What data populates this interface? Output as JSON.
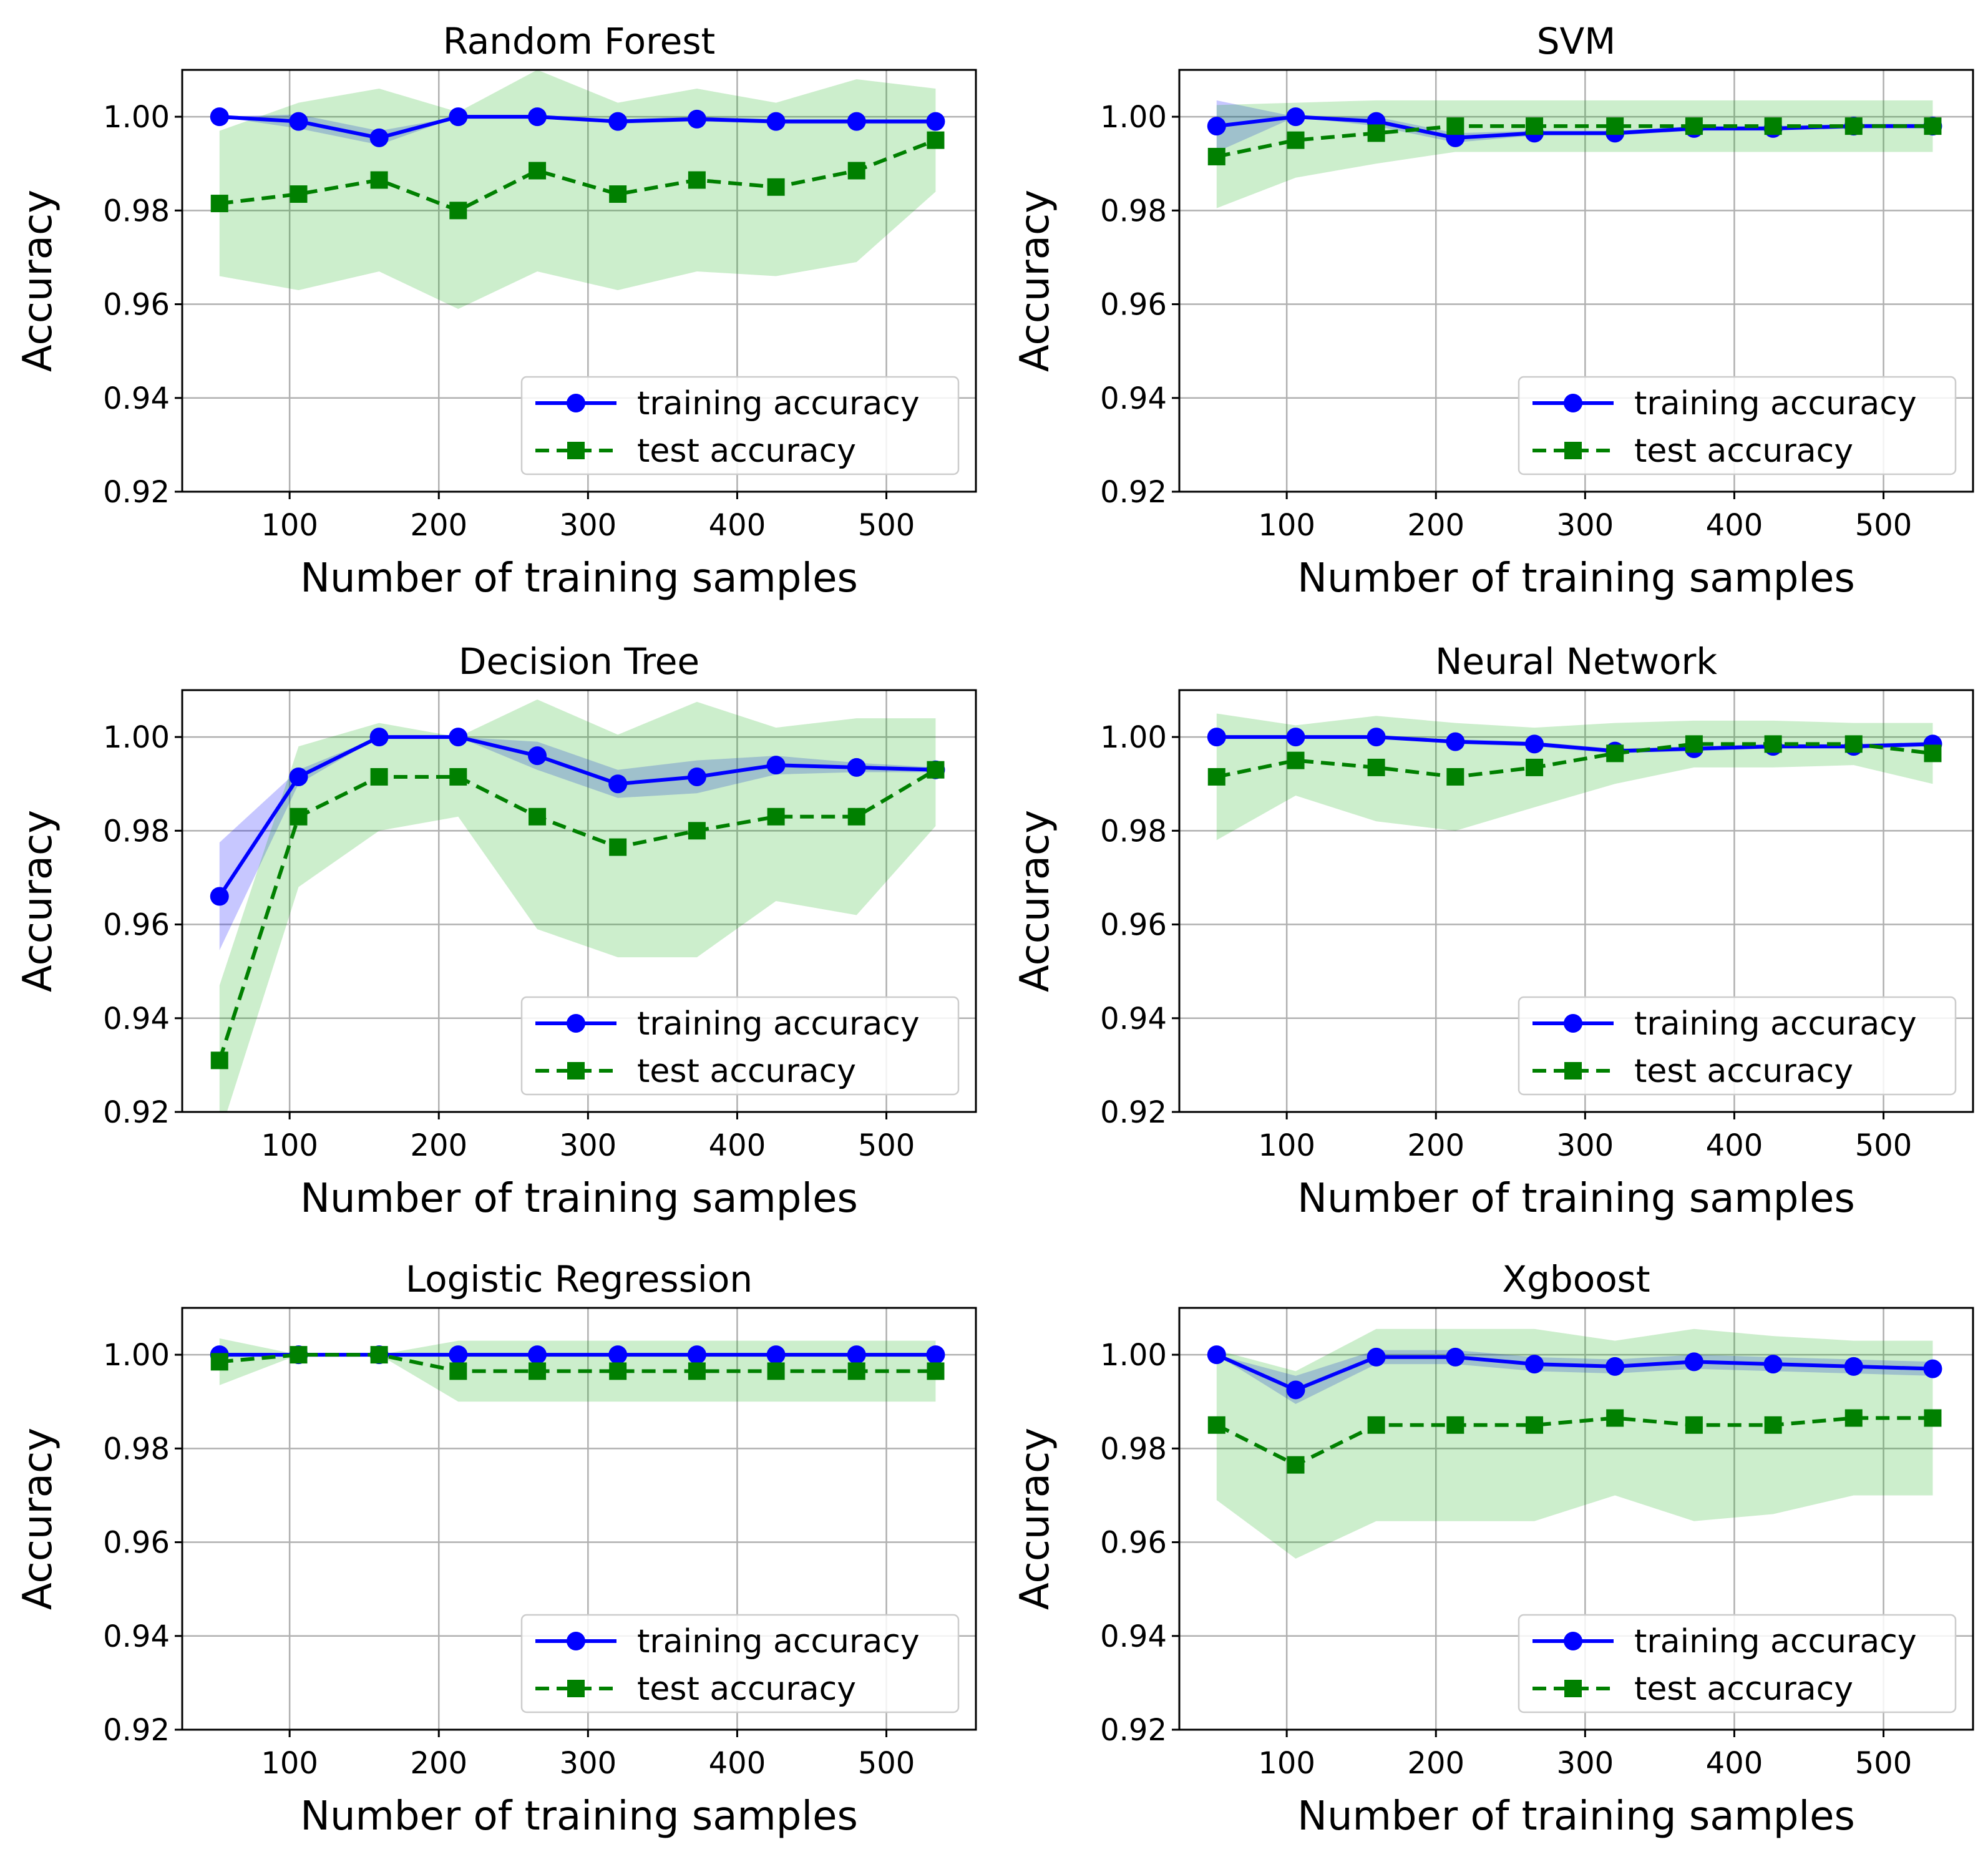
{
  "chart_data": [
    {
      "type": "line",
      "title": "Random Forest",
      "xlabel": "Number of training samples",
      "ylabel": "Accuracy",
      "xlim": [
        28,
        560
      ],
      "ylim": [
        0.92,
        1.01
      ],
      "xticks": [
        "100",
        "200",
        "300",
        "400",
        "500"
      ],
      "yticks": [
        "0.92",
        "0.94",
        "0.96",
        "0.98",
        "1.00"
      ],
      "grid": true,
      "legend_position": "lower-right",
      "x": [
        53,
        106,
        160,
        213,
        266,
        320,
        373,
        426,
        480,
        533
      ],
      "series": [
        {
          "name": "training accuracy",
          "color": "#0000ff",
          "style": "solid",
          "marker": "circle",
          "values": [
            1.0,
            0.999,
            0.9955,
            1.0,
            1.0,
            0.999,
            0.9995,
            0.999,
            0.999,
            0.999
          ],
          "band_low": [
            1.0,
            0.9975,
            0.994,
            1.0,
            1.0,
            0.9985,
            0.999,
            0.9985,
            0.9985,
            0.9985
          ],
          "band_high": [
            1.0,
            1.0005,
            0.997,
            1.0,
            1.0,
            0.9995,
            1.0,
            0.9995,
            0.9995,
            0.9995
          ]
        },
        {
          "name": "test accuracy",
          "color": "#008000",
          "style": "dashed",
          "marker": "square",
          "values": [
            0.9815,
            0.9835,
            0.9865,
            0.98,
            0.9885,
            0.9835,
            0.9865,
            0.985,
            0.9885,
            0.995
          ],
          "band_low": [
            0.966,
            0.963,
            0.967,
            0.959,
            0.967,
            0.963,
            0.967,
            0.966,
            0.969,
            0.984
          ],
          "band_high": [
            0.997,
            1.003,
            1.006,
            1.001,
            1.01,
            1.003,
            1.006,
            1.003,
            1.008,
            1.006
          ]
        }
      ]
    },
    {
      "type": "line",
      "title": "SVM",
      "xlabel": "Number of training samples",
      "ylabel": "Accuracy",
      "xlim": [
        28,
        560
      ],
      "ylim": [
        0.92,
        1.01
      ],
      "xticks": [
        "100",
        "200",
        "300",
        "400",
        "500"
      ],
      "yticks": [
        "0.92",
        "0.94",
        "0.96",
        "0.98",
        "1.00"
      ],
      "grid": true,
      "legend_position": "lower-right",
      "x": [
        53,
        106,
        160,
        213,
        266,
        320,
        373,
        426,
        480,
        533
      ],
      "series": [
        {
          "name": "training accuracy",
          "color": "#0000ff",
          "style": "solid",
          "marker": "circle",
          "values": [
            0.998,
            1.0,
            0.999,
            0.9955,
            0.9965,
            0.9965,
            0.9975,
            0.9975,
            0.998,
            0.998
          ],
          "band_low": [
            0.9925,
            1.0,
            0.998,
            0.9945,
            0.996,
            0.996,
            0.997,
            0.997,
            0.9975,
            0.9975
          ],
          "band_high": [
            1.0035,
            1.0,
            1.0,
            0.9965,
            0.997,
            0.997,
            0.998,
            0.998,
            0.9985,
            0.9985
          ]
        },
        {
          "name": "test accuracy",
          "color": "#008000",
          "style": "dashed",
          "marker": "square",
          "values": [
            0.9915,
            0.995,
            0.9965,
            0.998,
            0.998,
            0.998,
            0.998,
            0.998,
            0.998,
            0.998
          ],
          "band_low": [
            0.9805,
            0.987,
            0.99,
            0.9925,
            0.9925,
            0.9925,
            0.9925,
            0.9925,
            0.9925,
            0.9925
          ],
          "band_high": [
            1.0025,
            1.003,
            1.0035,
            1.0035,
            1.0035,
            1.0035,
            1.0035,
            1.0035,
            1.0035,
            1.0035
          ]
        }
      ]
    },
    {
      "type": "line",
      "title": "Decision Tree",
      "xlabel": "Number of training samples",
      "ylabel": "Accuracy",
      "xlim": [
        28,
        560
      ],
      "ylim": [
        0.92,
        1.01
      ],
      "xticks": [
        "100",
        "200",
        "300",
        "400",
        "500"
      ],
      "yticks": [
        "0.92",
        "0.94",
        "0.96",
        "0.98",
        "1.00"
      ],
      "grid": true,
      "legend_position": "lower-right",
      "x": [
        53,
        106,
        160,
        213,
        266,
        320,
        373,
        426,
        480,
        533
      ],
      "series": [
        {
          "name": "training accuracy",
          "color": "#0000ff",
          "style": "solid",
          "marker": "circle",
          "values": [
            0.966,
            0.9915,
            1.0,
            1.0,
            0.996,
            0.99,
            0.9915,
            0.994,
            0.9935,
            0.993
          ],
          "band_low": [
            0.9545,
            0.99,
            1.0,
            1.0,
            0.993,
            0.987,
            0.988,
            0.992,
            0.9925,
            0.9925
          ],
          "band_high": [
            0.9775,
            0.993,
            1.0,
            1.0,
            0.999,
            0.993,
            0.995,
            0.996,
            0.9945,
            0.9935
          ]
        },
        {
          "name": "test accuracy",
          "color": "#008000",
          "style": "dashed",
          "marker": "square",
          "values": [
            0.931,
            0.983,
            0.9915,
            0.9915,
            0.983,
            0.9765,
            0.98,
            0.983,
            0.983,
            0.993
          ],
          "band_low": [
            0.915,
            0.968,
            0.98,
            0.983,
            0.959,
            0.953,
            0.953,
            0.965,
            0.962,
            0.981
          ],
          "band_high": [
            0.947,
            0.998,
            1.003,
            1.0,
            1.008,
            1.0005,
            1.0075,
            1.002,
            1.004,
            1.004
          ]
        }
      ]
    },
    {
      "type": "line",
      "title": "Neural Network",
      "xlabel": "Number of training samples",
      "ylabel": "Accuracy",
      "xlim": [
        28,
        560
      ],
      "ylim": [
        0.92,
        1.01
      ],
      "xticks": [
        "100",
        "200",
        "300",
        "400",
        "500"
      ],
      "yticks": [
        "0.92",
        "0.94",
        "0.96",
        "0.98",
        "1.00"
      ],
      "grid": true,
      "legend_position": "lower-right",
      "x": [
        53,
        106,
        160,
        213,
        266,
        320,
        373,
        426,
        480,
        533
      ],
      "series": [
        {
          "name": "training accuracy",
          "color": "#0000ff",
          "style": "solid",
          "marker": "circle",
          "values": [
            1.0,
            1.0,
            1.0,
            0.999,
            0.9985,
            0.997,
            0.9975,
            0.998,
            0.998,
            0.9985
          ],
          "band_low": [
            1.0,
            1.0,
            1.0,
            0.9985,
            0.998,
            0.9965,
            0.997,
            0.9975,
            0.9975,
            0.998
          ],
          "band_high": [
            1.0,
            1.0,
            1.0,
            0.9995,
            0.999,
            0.9975,
            0.998,
            0.9985,
            0.9985,
            0.999
          ]
        },
        {
          "name": "test accuracy",
          "color": "#008000",
          "style": "dashed",
          "marker": "square",
          "values": [
            0.9915,
            0.995,
            0.9935,
            0.9915,
            0.9935,
            0.9965,
            0.9985,
            0.9985,
            0.9985,
            0.9965
          ],
          "band_low": [
            0.978,
            0.9875,
            0.982,
            0.98,
            0.985,
            0.99,
            0.9935,
            0.9935,
            0.994,
            0.99
          ],
          "band_high": [
            1.005,
            1.0025,
            1.0045,
            1.003,
            1.002,
            1.003,
            1.0035,
            1.0035,
            1.003,
            1.003
          ]
        }
      ]
    },
    {
      "type": "line",
      "title": "Logistic Regression",
      "xlabel": "Number of training samples",
      "ylabel": "Accuracy",
      "xlim": [
        28,
        560
      ],
      "ylim": [
        0.92,
        1.01
      ],
      "xticks": [
        "100",
        "200",
        "300",
        "400",
        "500"
      ],
      "yticks": [
        "0.92",
        "0.94",
        "0.96",
        "0.98",
        "1.00"
      ],
      "grid": true,
      "legend_position": "lower-right",
      "x": [
        53,
        106,
        160,
        213,
        266,
        320,
        373,
        426,
        480,
        533
      ],
      "series": [
        {
          "name": "training accuracy",
          "color": "#0000ff",
          "style": "solid",
          "marker": "circle",
          "values": [
            1.0,
            1.0,
            1.0,
            1.0,
            1.0,
            1.0,
            1.0,
            1.0,
            1.0,
            1.0
          ],
          "band_low": [
            1.0,
            1.0,
            1.0,
            1.0,
            1.0,
            1.0,
            1.0,
            1.0,
            1.0,
            1.0
          ],
          "band_high": [
            1.0,
            1.0,
            1.0,
            1.0,
            1.0,
            1.0,
            1.0,
            1.0,
            1.0,
            1.0
          ]
        },
        {
          "name": "test accuracy",
          "color": "#008000",
          "style": "dashed",
          "marker": "square",
          "values": [
            0.9985,
            1.0,
            1.0,
            0.9965,
            0.9965,
            0.9965,
            0.9965,
            0.9965,
            0.9965,
            0.9965
          ],
          "band_low": [
            0.9935,
            1.0,
            1.0,
            0.99,
            0.99,
            0.99,
            0.99,
            0.99,
            0.99,
            0.99
          ],
          "band_high": [
            1.0035,
            1.0,
            1.0,
            1.003,
            1.003,
            1.003,
            1.003,
            1.003,
            1.003,
            1.003
          ]
        }
      ]
    },
    {
      "type": "line",
      "title": "Xgboost",
      "xlabel": "Number of training samples",
      "ylabel": "Accuracy",
      "xlim": [
        28,
        560
      ],
      "ylim": [
        0.92,
        1.01
      ],
      "xticks": [
        "100",
        "200",
        "300",
        "400",
        "500"
      ],
      "yticks": [
        "0.92",
        "0.94",
        "0.96",
        "0.98",
        "1.00"
      ],
      "grid": true,
      "legend_position": "lower-right",
      "x": [
        53,
        106,
        160,
        213,
        266,
        320,
        373,
        426,
        480,
        533
      ],
      "series": [
        {
          "name": "training accuracy",
          "color": "#0000ff",
          "style": "solid",
          "marker": "circle",
          "values": [
            1.0,
            0.9925,
            0.9995,
            0.9995,
            0.998,
            0.9975,
            0.9985,
            0.998,
            0.9975,
            0.997
          ],
          "band_low": [
            1.0,
            0.9895,
            0.998,
            0.998,
            0.9965,
            0.996,
            0.997,
            0.9965,
            0.996,
            0.9955
          ],
          "band_high": [
            1.0,
            0.9955,
            1.001,
            1.001,
            0.9995,
            0.999,
            1.0,
            0.9995,
            0.999,
            0.9985
          ]
        },
        {
          "name": "test accuracy",
          "color": "#008000",
          "style": "dashed",
          "marker": "square",
          "values": [
            0.985,
            0.9765,
            0.985,
            0.985,
            0.985,
            0.9865,
            0.985,
            0.985,
            0.9865,
            0.9865
          ],
          "band_low": [
            0.969,
            0.9565,
            0.9645,
            0.9645,
            0.9645,
            0.97,
            0.9645,
            0.966,
            0.97,
            0.97
          ],
          "band_high": [
            1.001,
            0.9965,
            1.0055,
            1.0055,
            1.0055,
            1.003,
            1.0055,
            1.004,
            1.003,
            1.003
          ]
        }
      ]
    }
  ]
}
